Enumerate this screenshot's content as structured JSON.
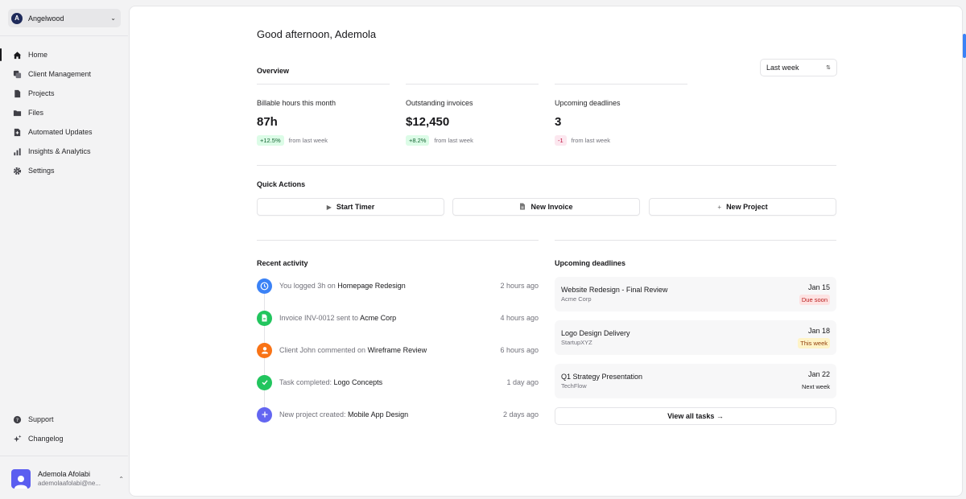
{
  "workspace": {
    "name": "Angelwood",
    "logo_letter": "A"
  },
  "nav": {
    "items": [
      {
        "label": "Home",
        "icon": "home-icon"
      },
      {
        "label": "Client Management",
        "icon": "clients-icon"
      },
      {
        "label": "Projects",
        "icon": "projects-icon"
      },
      {
        "label": "Files",
        "icon": "folder-icon"
      },
      {
        "label": "Automated Updates",
        "icon": "automated-updates-icon"
      },
      {
        "label": "Insights & Analytics",
        "icon": "analytics-icon"
      },
      {
        "label": "Settings",
        "icon": "gear-icon"
      }
    ],
    "bottom": [
      {
        "label": "Support",
        "icon": "help-icon"
      },
      {
        "label": "Changelog",
        "icon": "sparkle-icon"
      }
    ]
  },
  "user": {
    "name": "Ademola Afolabi",
    "email": "ademolaafolabi@ne..."
  },
  "header": {
    "greeting": "Good afternoon, Ademola"
  },
  "overview": {
    "title": "Overview",
    "period_select": "Last week",
    "stats": [
      {
        "label": "Billable hours this month",
        "value": "87h",
        "delta": "+12.5%",
        "delta_text": "from last week",
        "trend": "up"
      },
      {
        "label": "Outstanding invoices",
        "value": "$12,450",
        "delta": "+8.2%",
        "delta_text": "from last week",
        "trend": "up"
      },
      {
        "label": "Upcoming deadlines",
        "value": "3",
        "delta": "-1",
        "delta_text": "from last week",
        "trend": "down"
      }
    ]
  },
  "quick_actions": {
    "title": "Quick Actions",
    "buttons": [
      {
        "label": "Start Timer",
        "icon": "play-icon"
      },
      {
        "label": "New Invoice",
        "icon": "document-icon"
      },
      {
        "label": "New Project",
        "icon": "plus-icon"
      }
    ]
  },
  "recent_activity": {
    "title": "Recent activity",
    "items": [
      {
        "prefix": "You logged 3h on ",
        "target": "Homepage Redesign",
        "time": "2 hours ago",
        "icon": "clock-icon",
        "color": "#3b82f6"
      },
      {
        "prefix": "Invoice INV-0012 sent to ",
        "target": "Acme Corp",
        "time": "4 hours ago",
        "icon": "document-icon",
        "color": "#22c55e"
      },
      {
        "prefix": "Client John commented on ",
        "target": "Wireframe Review",
        "time": "6 hours ago",
        "icon": "user-icon",
        "color": "#f97316"
      },
      {
        "prefix": "Task completed: ",
        "target": "Logo Concepts",
        "time": "1 day ago",
        "icon": "check-icon",
        "color": "#22c55e"
      },
      {
        "prefix": "New project created: ",
        "target": "Mobile App Design",
        "time": "2 days ago",
        "icon": "plus-icon",
        "color": "#6366f1"
      }
    ]
  },
  "deadlines": {
    "title": "Upcoming deadlines",
    "items": [
      {
        "title": "Website Redesign - Final Review",
        "client": "Acme Corp",
        "date": "Jan 15",
        "status": "Due soon",
        "status_type": "soon"
      },
      {
        "title": "Logo Design Delivery",
        "client": "StartupXYZ",
        "date": "Jan 18",
        "status": "This week",
        "status_type": "week"
      },
      {
        "title": "Q1 Strategy Presentation",
        "client": "TechFlow",
        "date": "Jan 22",
        "status": "Next week",
        "status_type": "next"
      }
    ],
    "view_all": "View all tasks →"
  }
}
